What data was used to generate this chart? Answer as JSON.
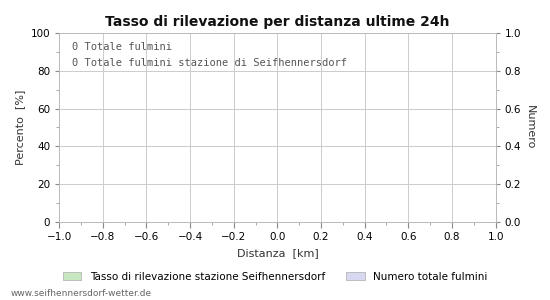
{
  "title": "Tasso di rilevazione per distanza ultime 24h",
  "xlabel": "Distanza  [km]",
  "ylabel_left": "Percento  [%]",
  "ylabel_right": "Numero",
  "annotation_line1": "0 Totale fulmini",
  "annotation_line2": "0 Totale fulmini stazione di Seifhennersdorf",
  "xlim": [
    -1.0,
    1.0
  ],
  "ylim_left": [
    0,
    100
  ],
  "ylim_right": [
    0.0,
    1.0
  ],
  "xticks": [
    -1.0,
    -0.8,
    -0.6,
    -0.4,
    -0.2,
    0.0,
    0.2,
    0.4,
    0.6,
    0.8,
    1.0
  ],
  "yticks_left": [
    0,
    20,
    40,
    60,
    80,
    100
  ],
  "yticks_right": [
    0.0,
    0.2,
    0.4,
    0.6,
    0.8,
    1.0
  ],
  "grid_color": "#cccccc",
  "background_color": "#ffffff",
  "plot_bg_color": "#ffffff",
  "legend_label_green": "Tasso di rilevazione stazione Seifhennersdorf",
  "legend_label_blue": "Numero totale fulmini",
  "legend_color_green": "#c8e6c0",
  "legend_color_blue": "#d8d8f0",
  "watermark": "www.seifhennersdorf-wetter.de",
  "title_fontsize": 10,
  "label_fontsize": 8,
  "tick_fontsize": 7.5,
  "annotation_fontsize": 7.5,
  "watermark_fontsize": 6.5,
  "legend_fontsize": 7.5
}
